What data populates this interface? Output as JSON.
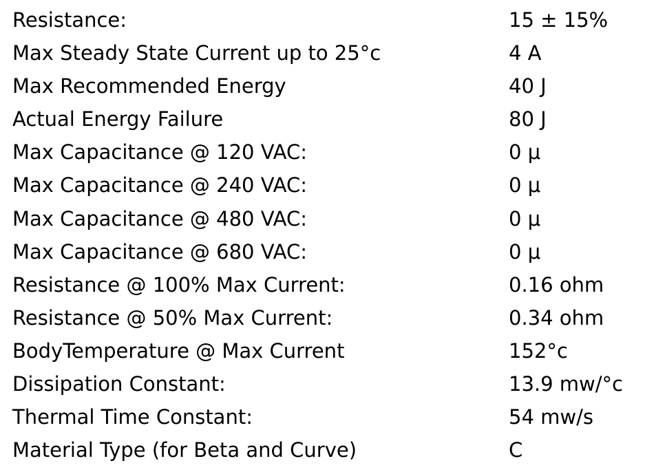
{
  "specs": [
    {
      "label": "Resistance:",
      "value": "15 ± 15%"
    },
    {
      "label": "Max Steady State Current up to 25°c",
      "value": "4 A"
    },
    {
      "label": "Max Recommended Energy",
      "value": "40 J"
    },
    {
      "label": "Actual Energy Failure",
      "value": "80 J"
    },
    {
      "label": "Max Capacitance @ 120 VAC:",
      "value": "0 μ"
    },
    {
      "label": "Max Capacitance @ 240 VAC:",
      "value": "0 μ"
    },
    {
      "label": "Max Capacitance @ 480 VAC:",
      "value": "0 μ"
    },
    {
      "label": "Max Capacitance @ 680 VAC:",
      "value": "0 μ"
    },
    {
      "label": "Resistance @ 100% Max Current:",
      "value": "0.16 ohm"
    },
    {
      "label": "Resistance @ 50% Max Current:",
      "value": "0.34 ohm"
    },
    {
      "label": "BodyTemperature @ Max Current",
      "value": "152°c"
    },
    {
      "label": "Dissipation Constant:",
      "value": "13.9 mw/°c"
    },
    {
      "label": "Thermal Time Constant:",
      "value": "54 mw/s"
    },
    {
      "label": "Material Type (for Beta and Curve)",
      "value": "C"
    }
  ]
}
